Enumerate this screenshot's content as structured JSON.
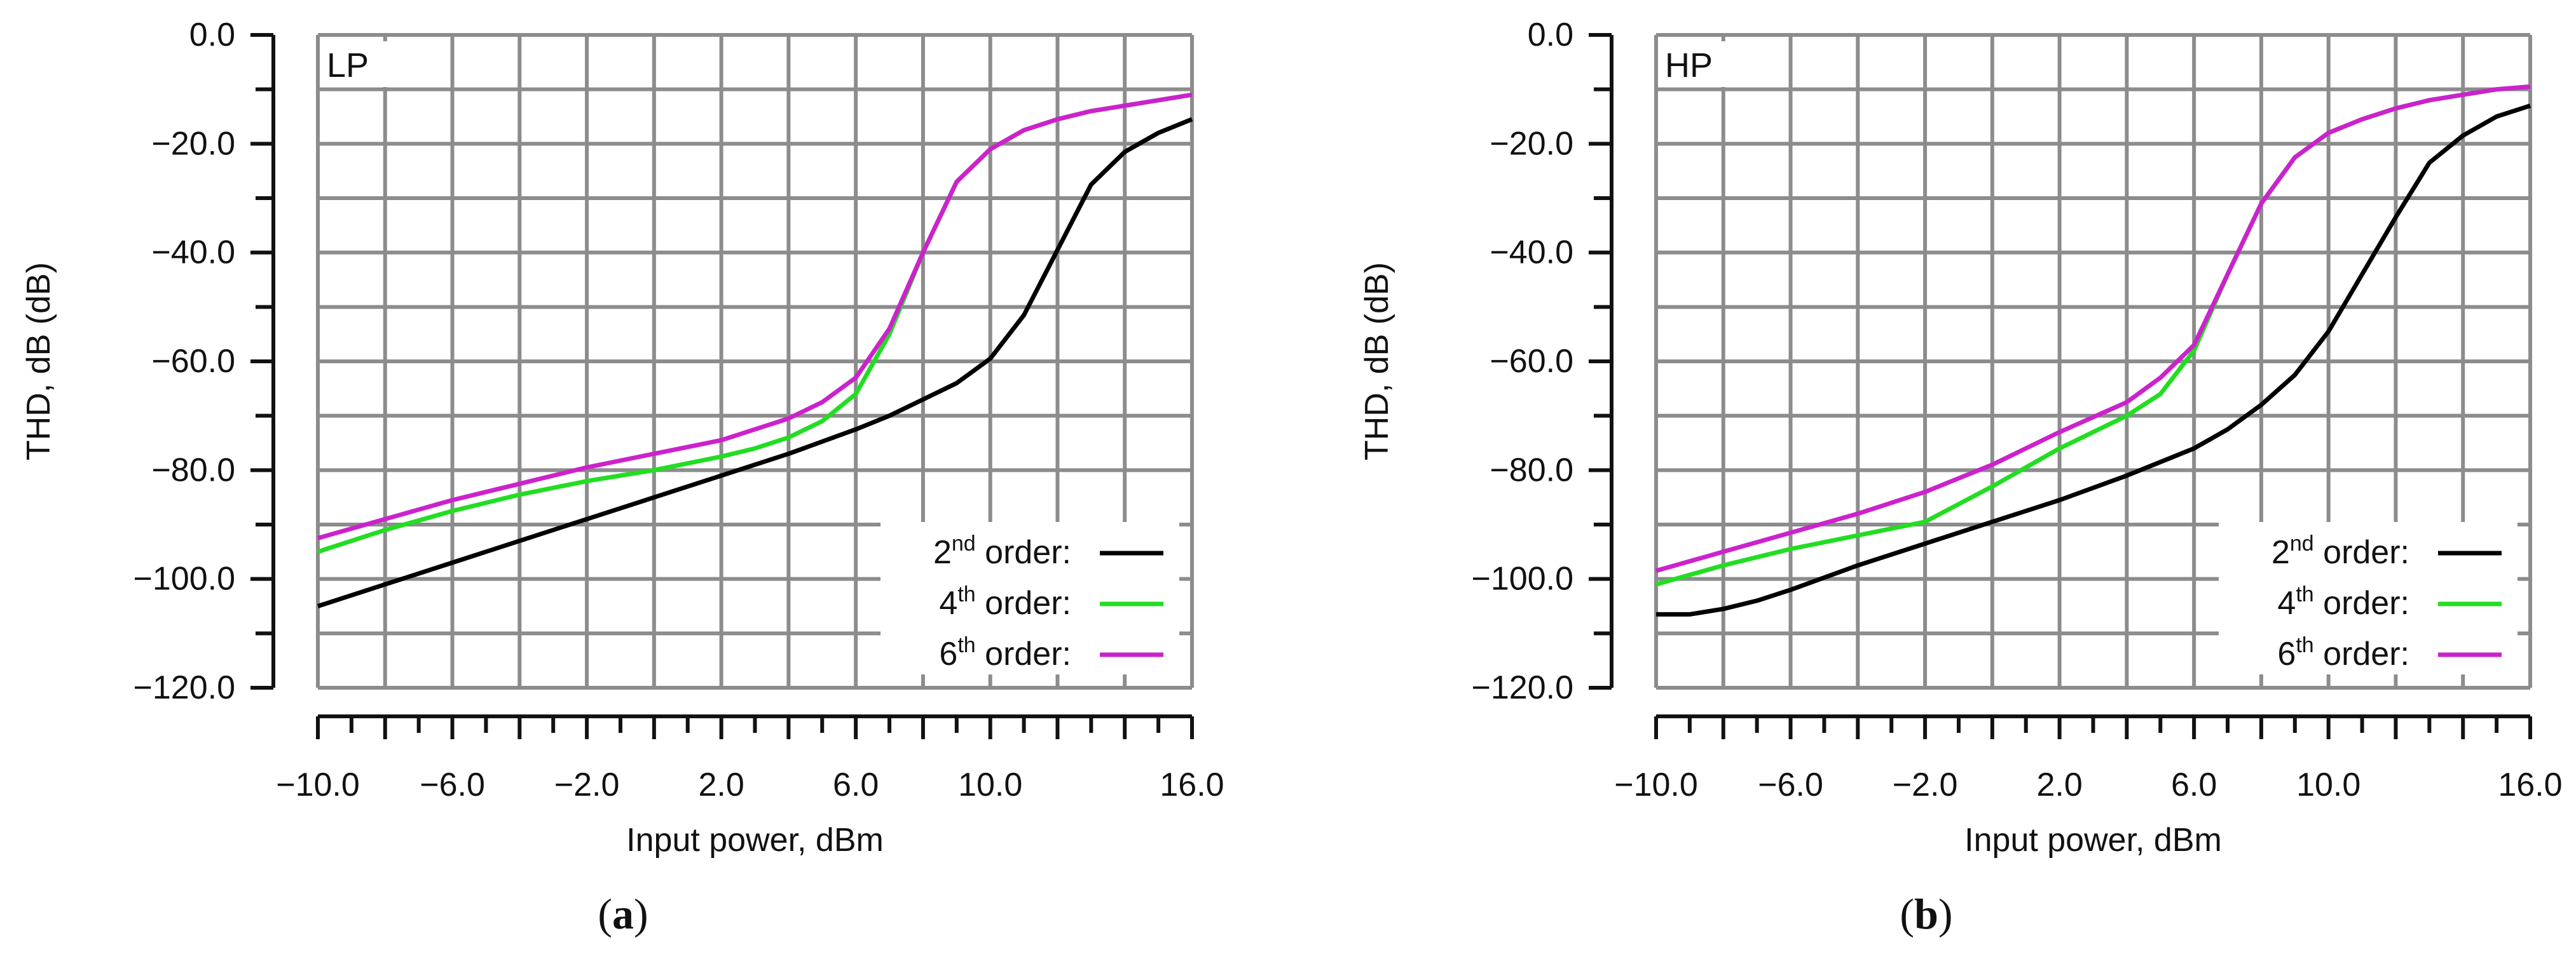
{
  "chart_data": [
    {
      "type": "line",
      "panel_label": "LP",
      "caption": "a",
      "xlabel": "Input power, dBm",
      "ylabel": "THD, dB (dB)",
      "xlim": [
        -10,
        16
      ],
      "ylim": [
        -120,
        0
      ],
      "xticks": [
        "−10.0",
        "−6.0",
        "−2.0",
        "2.0",
        "6.0",
        "10.0",
        "16.0"
      ],
      "xtick_values": [
        -10,
        -6,
        -2,
        2,
        6,
        10,
        16
      ],
      "yticks": [
        "0.0",
        "−20.0",
        "−40.0",
        "−60.0",
        "−80.0",
        "−100.0",
        "−120.0"
      ],
      "ytick_values": [
        0,
        -20,
        -40,
        -60,
        -80,
        -100,
        -120
      ],
      "grid": true,
      "legend_position": "bottom-right",
      "series": [
        {
          "name": "2nd order:",
          "order": "2",
          "suffix": "nd",
          "color": "#000000",
          "x": [
            -10,
            -8,
            -6,
            -4,
            -2,
            0,
            2,
            4,
            6,
            7,
            8,
            9,
            10,
            11,
            12,
            13,
            14,
            15,
            16
          ],
          "y": [
            -105,
            -101,
            -97,
            -93,
            -89,
            -85,
            -81,
            -77,
            -72.5,
            -70,
            -67,
            -64,
            -59.5,
            -51.5,
            -39.5,
            -27.5,
            -21.5,
            -18,
            -15.5
          ]
        },
        {
          "name": "4th order:",
          "order": "4",
          "suffix": "th",
          "color": "#22dd22",
          "x": [
            -10,
            -8,
            -6,
            -4,
            -2,
            0,
            2,
            3,
            4,
            5,
            6,
            7,
            8,
            9,
            10,
            11,
            12,
            13,
            14,
            15,
            16
          ],
          "y": [
            -95,
            -91,
            -87.5,
            -84.5,
            -82,
            -80,
            -77.5,
            -76,
            -74,
            -71,
            -66,
            -55,
            -40,
            -27,
            -21,
            -17.5,
            -15.5,
            -14,
            -13,
            -12,
            -11
          ]
        },
        {
          "name": "6th order:",
          "order": "6",
          "suffix": "th",
          "color": "#cc22cc",
          "x": [
            -10,
            -8,
            -6,
            -4,
            -2,
            0,
            2,
            3,
            4,
            5,
            6,
            7,
            8,
            9,
            10,
            11,
            12,
            13,
            14,
            15,
            16
          ],
          "y": [
            -92.5,
            -89,
            -85.5,
            -82.5,
            -79.5,
            -77,
            -74.5,
            -72.5,
            -70.5,
            -67.5,
            -63,
            -54,
            -40,
            -27,
            -21,
            -17.5,
            -15.5,
            -14,
            -13,
            -12,
            -11
          ]
        }
      ]
    },
    {
      "type": "line",
      "panel_label": "HP",
      "caption": "b",
      "xlabel": "Input power, dBm",
      "ylabel": "THD, dB (dB)",
      "xlim": [
        -10,
        16
      ],
      "ylim": [
        -120,
        0
      ],
      "xticks": [
        "−10.0",
        "−6.0",
        "−2.0",
        "2.0",
        "6.0",
        "10.0",
        "16.0"
      ],
      "xtick_values": [
        -10,
        -6,
        -2,
        2,
        6,
        10,
        16
      ],
      "yticks": [
        "0.0",
        "−20.0",
        "−40.0",
        "−60.0",
        "−80.0",
        "−100.0",
        "−120.0"
      ],
      "ytick_values": [
        0,
        -20,
        -40,
        -60,
        -80,
        -100,
        -120
      ],
      "grid": true,
      "legend_position": "bottom-right",
      "series": [
        {
          "name": "2nd order:",
          "order": "2",
          "suffix": "nd",
          "color": "#000000",
          "x": [
            -10,
            -9,
            -8,
            -7,
            -6,
            -4,
            -2,
            0,
            2,
            4,
            6,
            7,
            8,
            9,
            10,
            11,
            12,
            13,
            14,
            15,
            16
          ],
          "y": [
            -106.5,
            -106.5,
            -105.5,
            -104,
            -102,
            -97.5,
            -93.5,
            -89.5,
            -85.5,
            -81,
            -76,
            -72.5,
            -68,
            -62.5,
            -54.5,
            -44,
            -33.5,
            -23.5,
            -18.5,
            -15,
            -13
          ]
        },
        {
          "name": "4th order:",
          "order": "4",
          "suffix": "th",
          "color": "#22dd22",
          "x": [
            -10,
            -8,
            -6,
            -4,
            -2,
            0,
            2,
            4,
            5,
            6,
            7,
            8,
            9,
            10,
            11,
            12,
            13,
            14,
            15,
            16
          ],
          "y": [
            -101,
            -97.5,
            -94.5,
            -92,
            -89.5,
            -83,
            -76,
            -70,
            -66,
            -58,
            -44,
            -31,
            -22.5,
            -18,
            -15.5,
            -13.5,
            -12,
            -11,
            -10,
            -9.5
          ]
        },
        {
          "name": "6th order:",
          "order": "6",
          "suffix": "th",
          "color": "#cc22cc",
          "x": [
            -10,
            -8,
            -6,
            -4,
            -2,
            0,
            2,
            4,
            5,
            6,
            7,
            8,
            9,
            10,
            11,
            12,
            13,
            14,
            15,
            16
          ],
          "y": [
            -98.5,
            -95,
            -91.5,
            -88,
            -84,
            -79,
            -73,
            -67.5,
            -63,
            -57,
            -44,
            -31,
            -22.5,
            -18,
            -15.5,
            -13.5,
            -12,
            -11,
            -10,
            -9.5
          ]
        }
      ]
    }
  ]
}
